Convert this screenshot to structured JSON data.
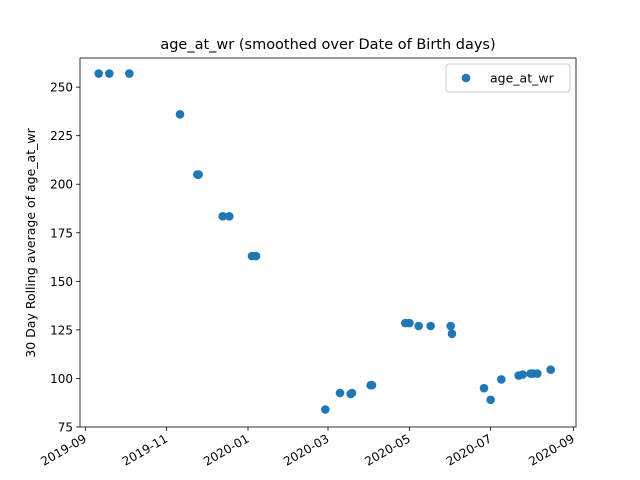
{
  "chart_data": {
    "type": "scatter",
    "title": "age_at_wr (smoothed over Date of Birth days)",
    "xlabel": "",
    "ylabel": "30 Day Rolling average of age_at_wr",
    "xlim": [
      "2019-08-28",
      "2020-09-03"
    ],
    "ylim": [
      75,
      265
    ],
    "x_ticks": [
      "2019-09",
      "2019-11",
      "2020-01",
      "2020-03",
      "2020-05",
      "2020-07",
      "2020-09"
    ],
    "y_ticks": [
      75,
      100,
      125,
      150,
      175,
      200,
      225,
      250
    ],
    "grid": false,
    "legend_position": "top-right",
    "color": "#1f77b4",
    "series": [
      {
        "name": "age_at_wr",
        "points": [
          {
            "x": "2019-09-11",
            "y": 257
          },
          {
            "x": "2019-09-19",
            "y": 257
          },
          {
            "x": "2019-10-04",
            "y": 257
          },
          {
            "x": "2019-11-11",
            "y": 236
          },
          {
            "x": "2019-11-24",
            "y": 205
          },
          {
            "x": "2019-11-25",
            "y": 205
          },
          {
            "x": "2019-12-13",
            "y": 183.5
          },
          {
            "x": "2019-12-18",
            "y": 183.5
          },
          {
            "x": "2020-01-04",
            "y": 163
          },
          {
            "x": "2020-01-07",
            "y": 163
          },
          {
            "x": "2020-02-28",
            "y": 84
          },
          {
            "x": "2020-03-10",
            "y": 92.5
          },
          {
            "x": "2020-03-18",
            "y": 92
          },
          {
            "x": "2020-03-19",
            "y": 92.5
          },
          {
            "x": "2020-04-02",
            "y": 96.5
          },
          {
            "x": "2020-04-03",
            "y": 96.5
          },
          {
            "x": "2020-04-28",
            "y": 128.5
          },
          {
            "x": "2020-05-01",
            "y": 128.5
          },
          {
            "x": "2020-05-08",
            "y": 127
          },
          {
            "x": "2020-05-17",
            "y": 127
          },
          {
            "x": "2020-06-01",
            "y": 127
          },
          {
            "x": "2020-06-02",
            "y": 123
          },
          {
            "x": "2020-06-26",
            "y": 95
          },
          {
            "x": "2020-07-01",
            "y": 89
          },
          {
            "x": "2020-07-09",
            "y": 99.5
          },
          {
            "x": "2020-07-22",
            "y": 101.5
          },
          {
            "x": "2020-07-25",
            "y": 102
          },
          {
            "x": "2020-07-31",
            "y": 102.5
          },
          {
            "x": "2020-08-02",
            "y": 102.5
          },
          {
            "x": "2020-08-05",
            "y": 102.5
          },
          {
            "x": "2020-08-15",
            "y": 104.5
          }
        ]
      }
    ]
  }
}
